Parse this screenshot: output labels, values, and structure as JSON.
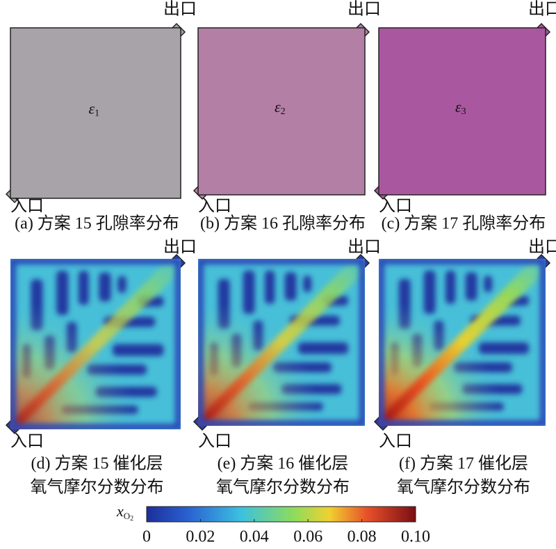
{
  "panels": [
    {
      "outlet": "出口",
      "inlet": "入口",
      "symbol": "ε",
      "subscript": "1",
      "caption": "(a) 方案 15 孔隙率分布"
    },
    {
      "outlet": "出口",
      "inlet": "入口",
      "symbol": "ε",
      "subscript": "2",
      "caption": "(b) 方案 16 孔隙率分布"
    },
    {
      "outlet": "出口",
      "inlet": "入口",
      "symbol": "ε",
      "subscript": "3",
      "caption": "(c) 方案 17 孔隙率分布"
    },
    {
      "outlet": "出口",
      "inlet": "入口",
      "caption": [
        "(d) 方案 15 催化层",
        "氧气摩尔分数分布"
      ]
    },
    {
      "outlet": "出口",
      "inlet": "入口",
      "caption": [
        "(e) 方案 16 催化层",
        "氧气摩尔分数分布"
      ]
    },
    {
      "outlet": "出口",
      "inlet": "入口",
      "caption": [
        "(f) 方案 17 催化层",
        "氧气摩尔分数分布"
      ]
    }
  ],
  "colorbar": {
    "label": "x",
    "label_subscript": "O",
    "label_subscript_index": "2",
    "range": [
      0,
      0.1
    ],
    "ticks": [
      0,
      0.02,
      0.04,
      0.06,
      0.08,
      {
        "value": 0.1,
        "label": "0.10"
      }
    ]
  }
}
